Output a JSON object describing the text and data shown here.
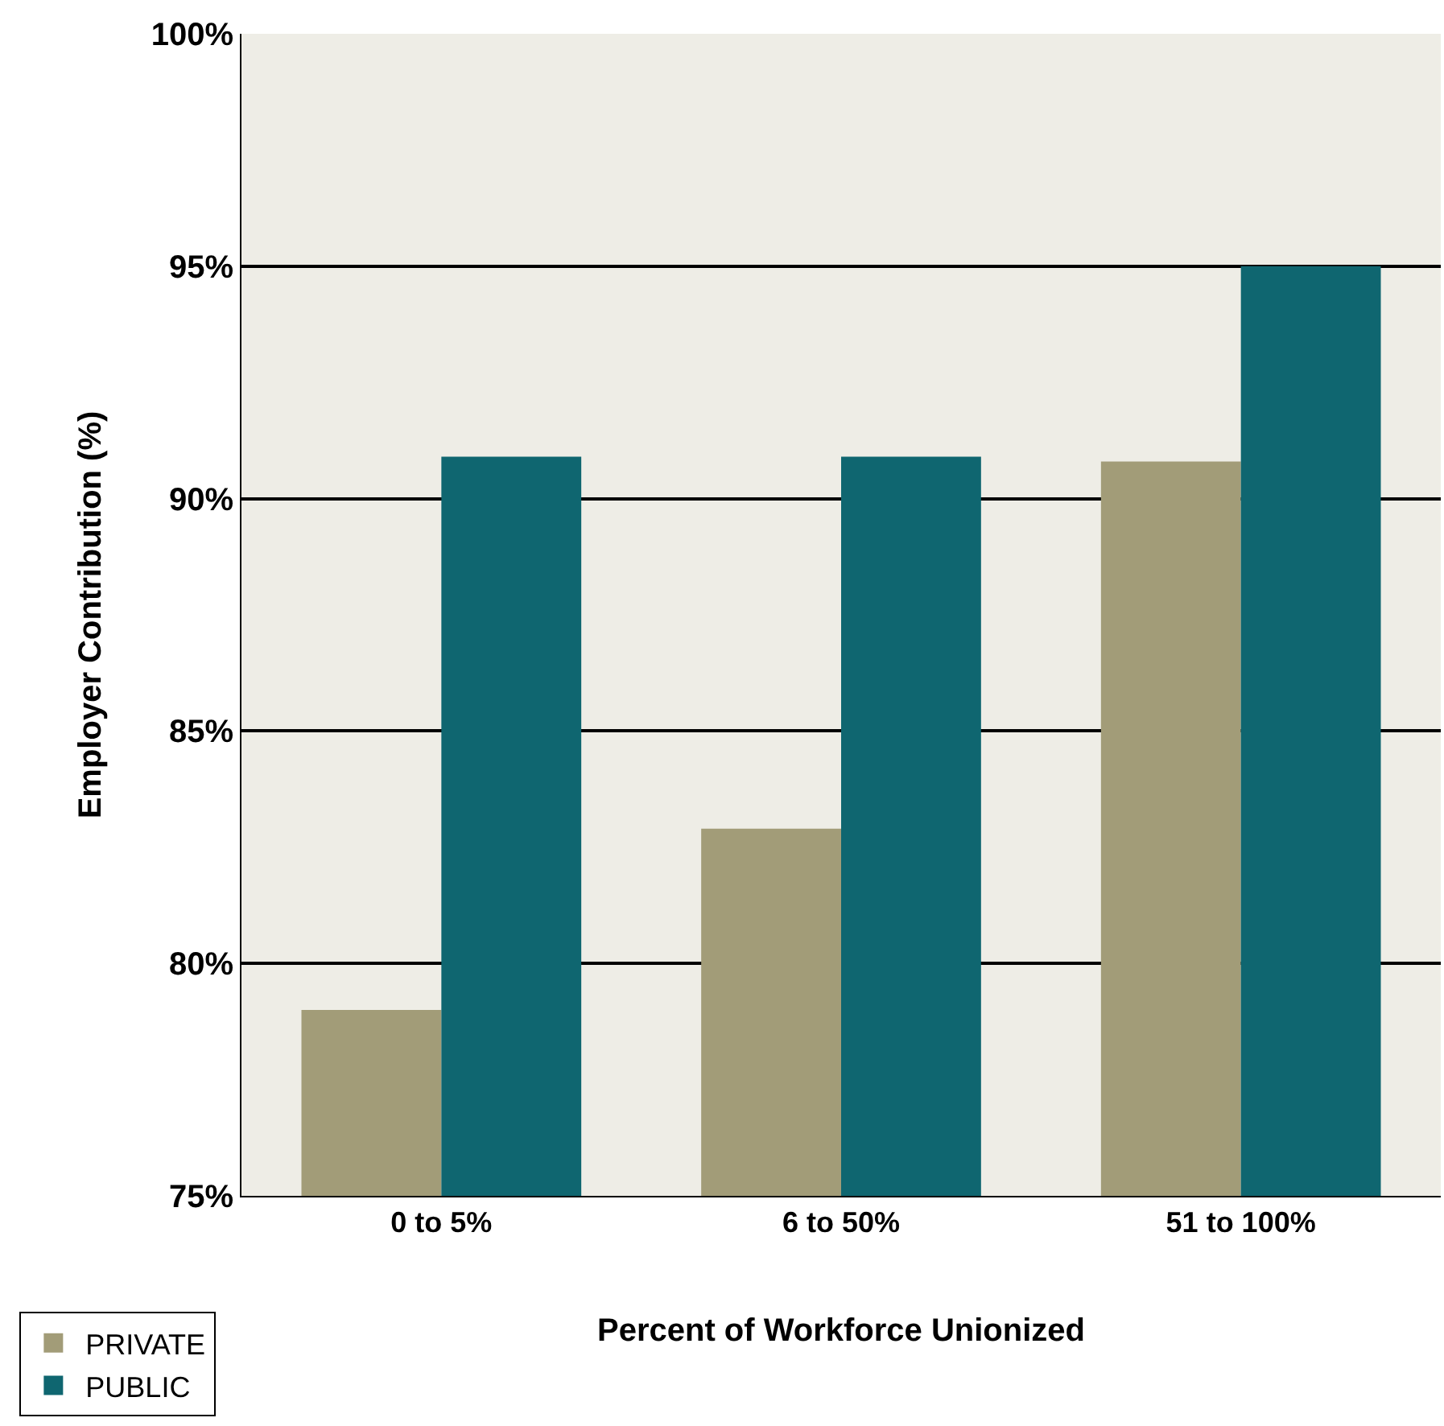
{
  "chart_data": {
    "type": "bar",
    "xlabel": "Percent of Workforce Unionized",
    "ylabel": "Employer Contribution (%)",
    "categories": [
      "0 to 5%",
      "6 to 50%",
      "51 to 100%"
    ],
    "series": [
      {
        "name": "PRIVATE",
        "color": "#a29c78",
        "values": [
          79,
          82.9,
          90.8
        ]
      },
      {
        "name": "PUBLIC",
        "color": "#0f6670",
        "values": [
          90.9,
          90.9,
          95
        ]
      }
    ],
    "ylim": [
      75,
      100
    ],
    "yticks": [
      {
        "value": 75,
        "label": "75%"
      },
      {
        "value": 80,
        "label": "80%"
      },
      {
        "value": 85,
        "label": "85%"
      },
      {
        "value": 90,
        "label": "90%"
      },
      {
        "value": 95,
        "label": "95%"
      },
      {
        "value": 100,
        "label": "100%"
      }
    ],
    "grid": "y",
    "legend": "bottom left"
  }
}
